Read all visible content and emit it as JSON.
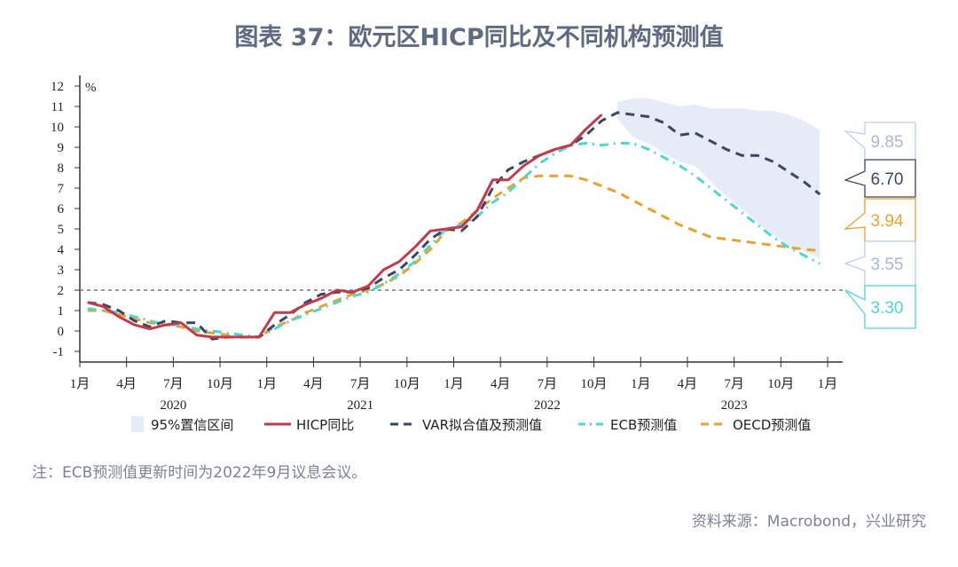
{
  "title": "图表 37：欧元区HICP同比及不同机构预测值",
  "note": "注：ECB预测值更新时间为2022年9月议息会议。",
  "source": "资料来源：Macrobond，兴业研究",
  "chart_data": {
    "type": "line",
    "unit_label": "%",
    "ylim": [
      -1,
      12
    ],
    "yticks": [
      "-1",
      "0",
      "1",
      "2",
      "3",
      "4",
      "5",
      "6",
      "7",
      "8",
      "9",
      "10",
      "11",
      "12"
    ],
    "x_start": "2020-01",
    "x_end": "2024-01",
    "xtick_labels": [
      "1月",
      "4月",
      "7月",
      "10月",
      "1月",
      "4月",
      "7月",
      "10月",
      "1月",
      "4月",
      "7月",
      "10月",
      "1月",
      "4月",
      "7月",
      "10月",
      "1月"
    ],
    "year_labels": [
      "2020",
      "2021",
      "2022",
      "2023"
    ],
    "reference_line": {
      "value": 2,
      "style": "dotted",
      "color": "#777777"
    },
    "series": [
      {
        "name": "HICP同比",
        "color": "#c23a4c",
        "style": "solid",
        "start": "2020-01",
        "values": [
          1.4,
          1.2,
          0.7,
          0.3,
          0.1,
          0.3,
          0.4,
          -0.2,
          -0.3,
          -0.3,
          -0.3,
          -0.3,
          0.9,
          0.9,
          1.3,
          1.6,
          2.0,
          1.9,
          2.2,
          3.0,
          3.4,
          4.1,
          4.9,
          5.0,
          5.1,
          5.9,
          7.4,
          7.4,
          8.1,
          8.6,
          8.9,
          9.1,
          9.9,
          10.6
        ]
      },
      {
        "name": "VAR拟合值及预测值",
        "color": "#3c4660",
        "style": "dash",
        "start": "2020-01",
        "values": [
          1.4,
          1.3,
          1.0,
          0.5,
          0.2,
          0.5,
          0.4,
          0.4,
          -0.4,
          -0.3,
          -0.3,
          -0.3,
          0.3,
          0.8,
          1.4,
          1.8,
          1.9,
          1.9,
          2.1,
          2.6,
          3.0,
          3.7,
          4.5,
          5.0,
          4.9,
          5.6,
          7.0,
          7.9,
          8.3,
          8.6,
          8.9,
          9.1,
          9.6,
          10.3,
          10.7,
          10.6,
          10.5,
          10.2,
          9.6,
          9.7,
          9.3,
          8.9,
          8.6,
          8.6,
          8.3,
          7.8,
          7.3,
          6.7
        ]
      },
      {
        "name": "ECB预测值",
        "color": "#4fd6cf",
        "style": "dashdot",
        "start": "2020-01",
        "values": [
          1.1,
          1.0,
          0.9,
          0.7,
          0.5,
          0.3,
          0.3,
          0.1,
          0.0,
          -0.1,
          -0.2,
          -0.3,
          0.1,
          0.5,
          0.8,
          1.1,
          1.4,
          1.7,
          1.9,
          2.3,
          2.8,
          3.4,
          4.2,
          5.0,
          5.2,
          5.6,
          6.3,
          6.8,
          7.5,
          8.2,
          8.7,
          9.1,
          9.2,
          9.1,
          9.2,
          9.2,
          8.9,
          8.5,
          8.1,
          7.6,
          7.0,
          6.4,
          5.8,
          5.2,
          4.6,
          4.1,
          3.7,
          3.3
        ]
      },
      {
        "name": "OECD预测值",
        "color": "#e9a131",
        "style": "dash",
        "start": "2020-01",
        "values": [
          1.0,
          1.0,
          0.8,
          0.6,
          0.4,
          0.3,
          0.2,
          0.0,
          -0.1,
          -0.2,
          -0.3,
          -0.3,
          0.2,
          0.5,
          0.9,
          1.2,
          1.5,
          1.8,
          2.0,
          2.3,
          2.7,
          3.3,
          4.0,
          4.9,
          5.3,
          5.9,
          6.5,
          7.0,
          7.5,
          7.6,
          7.6,
          7.6,
          7.4,
          7.1,
          6.8,
          6.4,
          6.0,
          5.6,
          5.2,
          4.9,
          4.6,
          4.5,
          4.4,
          4.3,
          4.2,
          4.1,
          4.0,
          3.94
        ]
      }
    ],
    "band": {
      "name": "95%置信区间",
      "color": "#e5ebf7",
      "start": "2022-11",
      "upper": [
        11.2,
        11.4,
        11.4,
        11.2,
        11.0,
        11.1,
        10.9,
        10.9,
        10.9,
        10.8,
        10.8,
        10.6,
        10.3,
        9.85
      ],
      "lower": [
        10.4,
        9.5,
        9.2,
        8.7,
        8.3,
        8.1,
        7.3,
        6.6,
        6.0,
        5.3,
        4.7,
        4.2,
        3.9,
        3.55
      ]
    },
    "end_labels": [
      {
        "text": "9.85",
        "color": "#a9b9d2",
        "border": "#bcd0e6"
      },
      {
        "text": "6.70",
        "color": "#3c4660",
        "border": "#3c4660"
      },
      {
        "text": "3.94",
        "color": "#e9a131",
        "border": "#e9a131"
      },
      {
        "text": "3.55",
        "color": "#a9b9d2",
        "border": "#bcd0e6"
      },
      {
        "text": "3.30",
        "color": "#4fd6cf",
        "border": "#4fd6cf"
      }
    ],
    "legend_position": "bottom"
  }
}
